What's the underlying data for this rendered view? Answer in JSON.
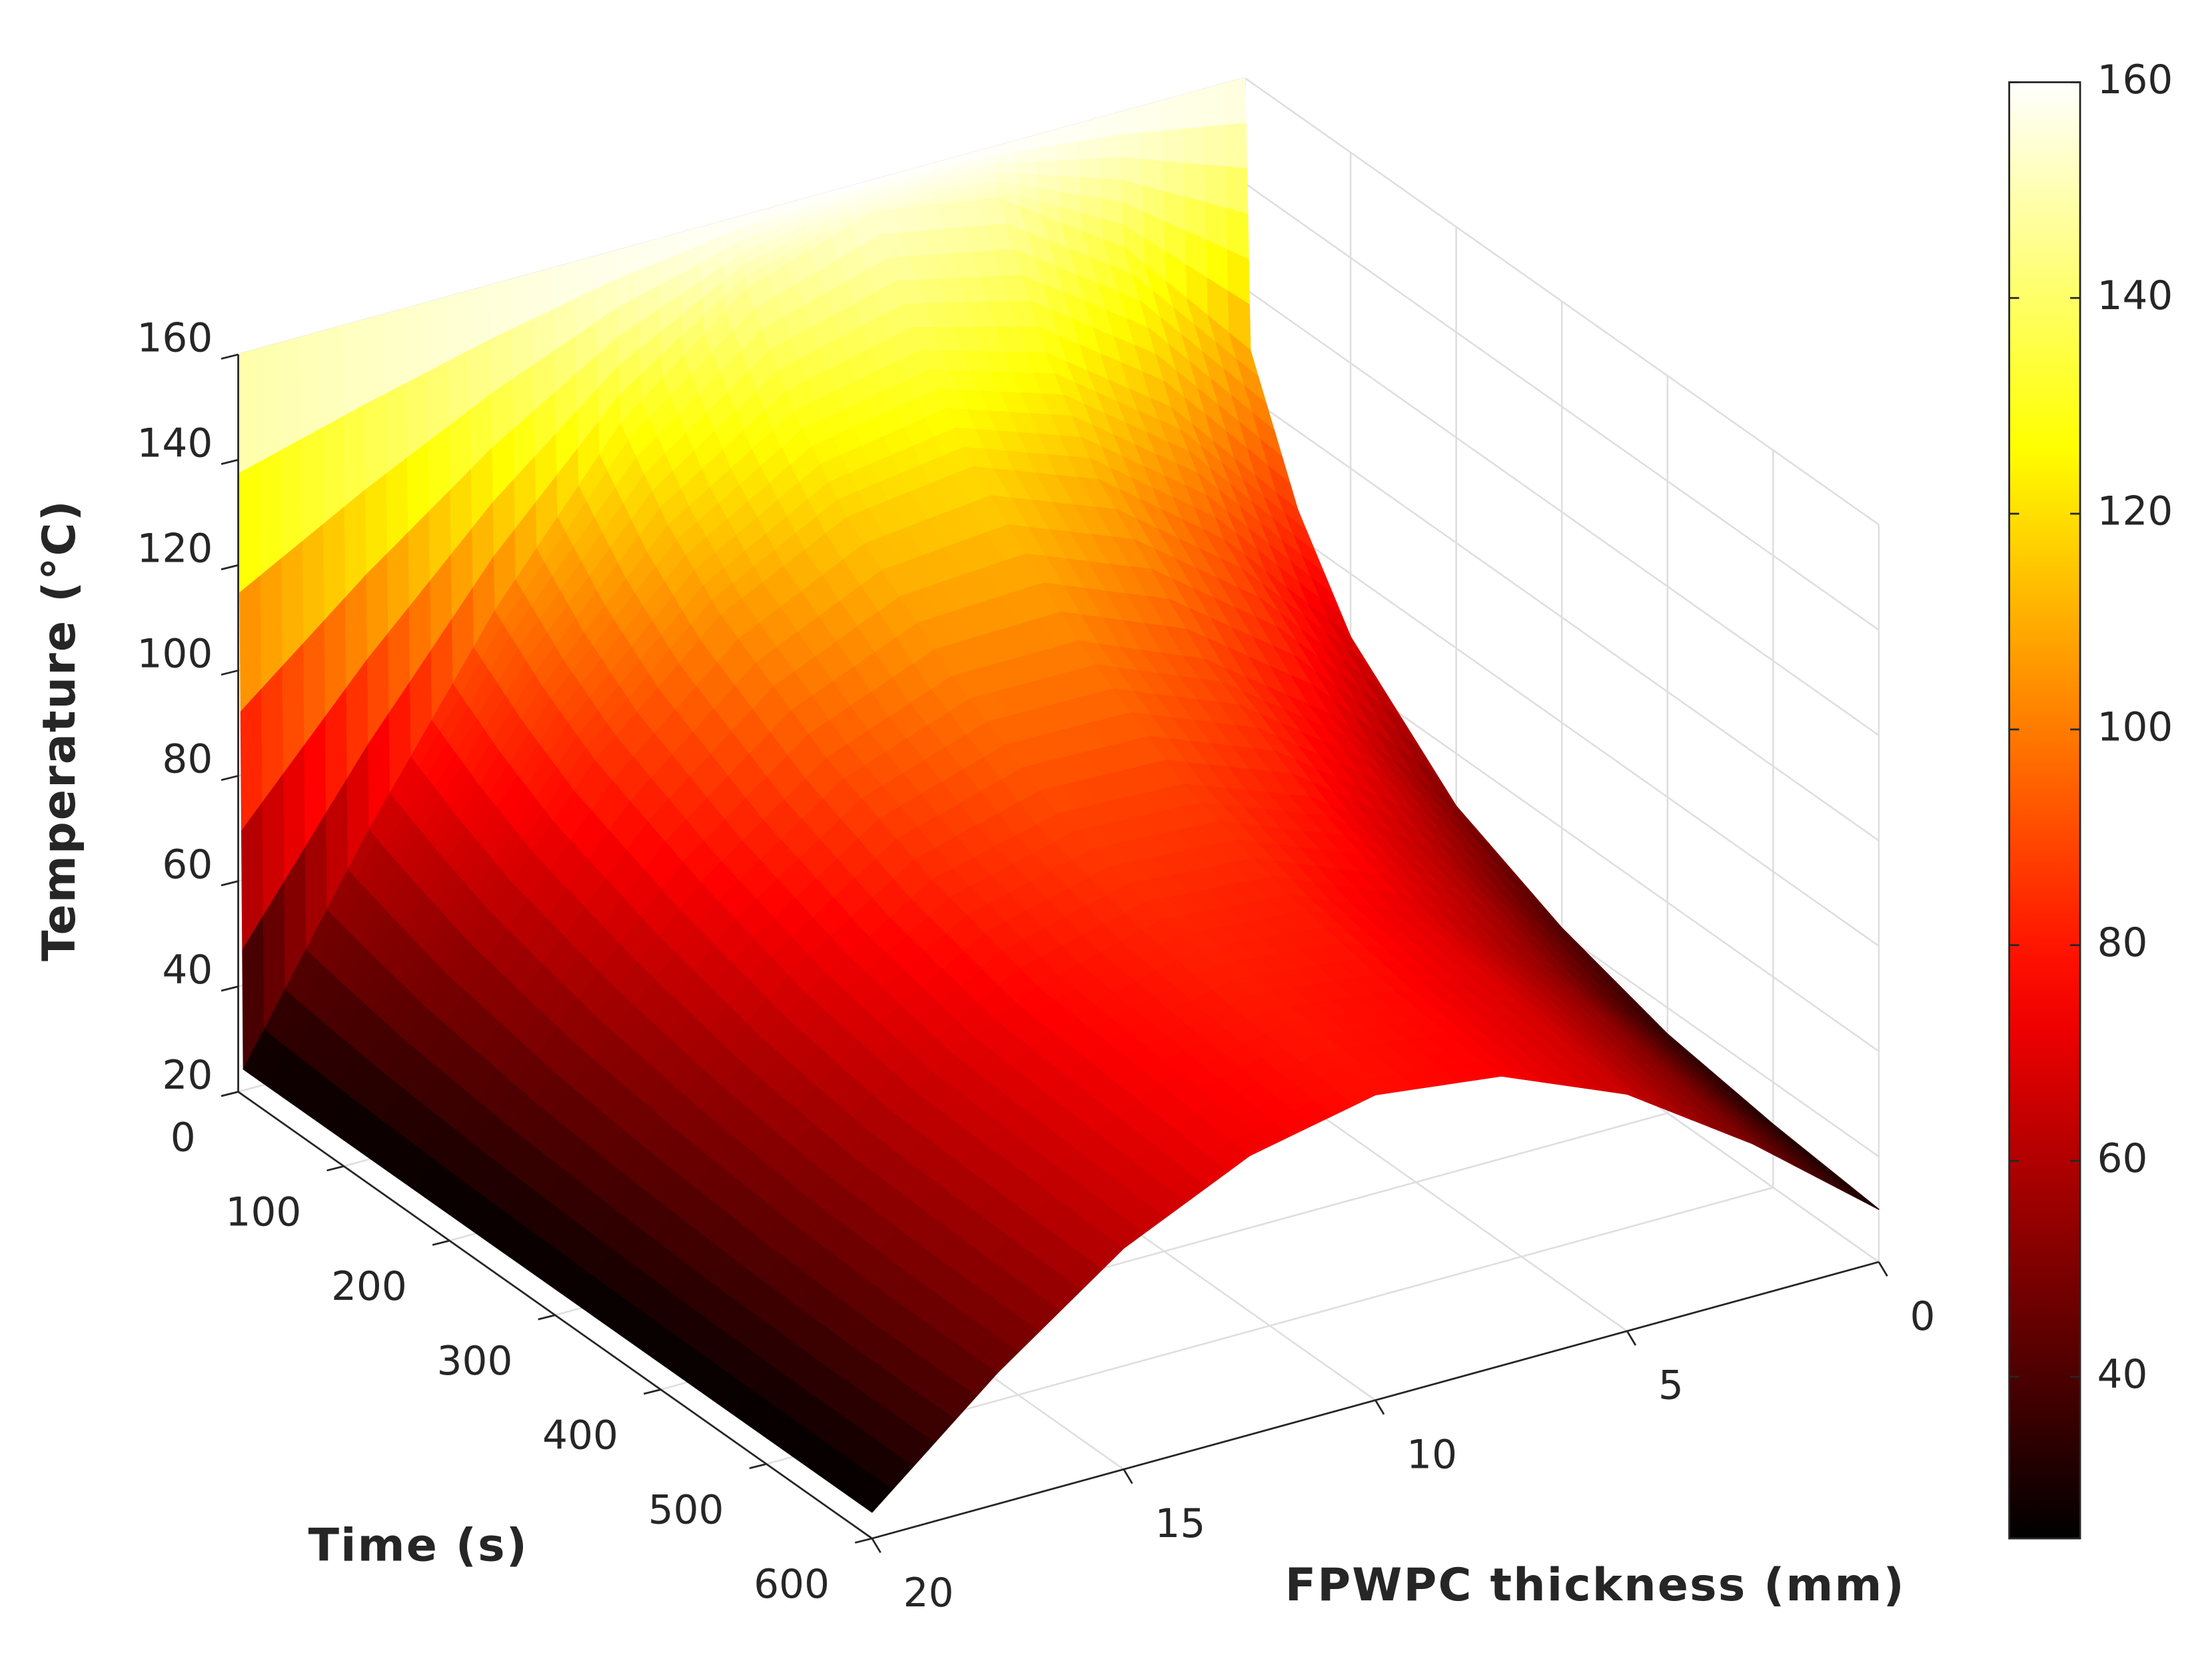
{
  "chart_data": {
    "type": "surface",
    "xlabel": "FPWPC thickness (mm)",
    "ylabel": "Time (s)",
    "zlabel": "Temperature (°C)",
    "x": [
      0,
      2.5,
      5,
      7.5,
      10,
      12.5,
      15,
      17.5,
      20
    ],
    "y": [
      0,
      5,
      50,
      100,
      200,
      300,
      400,
      500,
      600
    ],
    "z": [
      [
        160,
        160,
        160,
        160,
        160,
        160,
        160,
        160,
        160
      ],
      [
        109,
        135,
        151,
        155,
        147,
        128,
        99,
        64,
        25
      ],
      [
        85,
        111,
        128,
        135,
        130,
        115,
        91,
        60,
        25
      ],
      [
        68,
        93,
        111,
        120,
        117,
        105,
        84,
        56,
        25
      ],
      [
        50,
        74,
        91,
        101,
        101,
        92,
        75,
        51,
        25
      ],
      [
        41,
        62,
        79,
        88,
        89,
        83,
        68,
        48,
        25
      ],
      [
        35,
        55,
        71,
        81,
        83,
        77,
        64,
        46,
        25
      ],
      [
        32,
        52,
        68,
        77,
        80,
        75,
        63,
        45,
        25
      ],
      [
        30,
        49,
        65,
        75,
        78,
        73,
        62,
        45,
        25
      ]
    ],
    "xlim": [
      0,
      20
    ],
    "xticks": [
      0,
      5,
      10,
      15,
      20
    ],
    "ylim": [
      0,
      600
    ],
    "yticks": [
      0,
      100,
      200,
      300,
      400,
      500,
      600
    ],
    "zlim": [
      20,
      160
    ],
    "zticks": [
      20,
      40,
      60,
      80,
      100,
      120,
      140,
      160
    ],
    "colormap": "hot",
    "clim": [
      25,
      160
    ],
    "colorbar_ticks": [
      40,
      60,
      80,
      100,
      120,
      140,
      160
    ],
    "grid": true
  }
}
